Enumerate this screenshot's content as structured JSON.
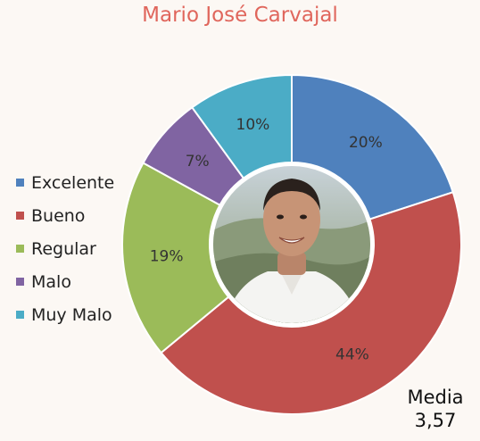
{
  "chart_data": {
    "type": "pie",
    "title": "Mario José Carvajal",
    "categories": [
      "Excelente",
      "Bueno",
      "Regular",
      "Malo",
      "Muy Malo"
    ],
    "values": [
      20,
      44,
      19,
      7,
      10
    ],
    "value_labels": [
      "20%",
      "44%",
      "19%",
      "7%",
      "10%"
    ],
    "colors": [
      "#4f81bd",
      "#c0504d",
      "#9bbb59",
      "#8064a2",
      "#4bacc6"
    ],
    "legend": "left",
    "donut": true,
    "center_image": "portrait-photo"
  },
  "summary": {
    "label": "Media",
    "value": "3,57"
  }
}
